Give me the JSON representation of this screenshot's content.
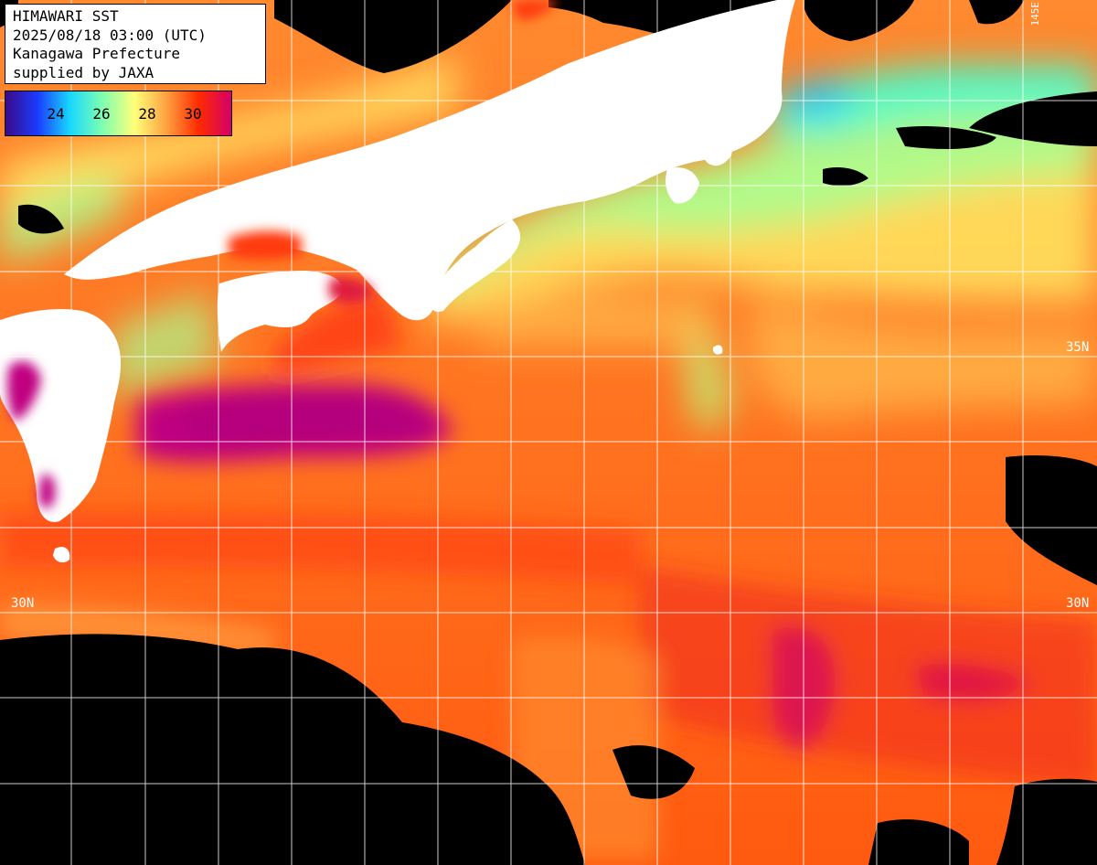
{
  "info": {
    "line1": "HIMAWARI SST",
    "line2": "2025/08/18 03:00 (UTC)",
    "line3": "Kanagawa Prefecture",
    "line4": "supplied by JAXA"
  },
  "legend": {
    "ticks": [
      "24",
      "26",
      "28",
      "30"
    ],
    "colors": [
      "#3a0a8a",
      "#1a3cff",
      "#18d8ff",
      "#7dffb0",
      "#ffff7a",
      "#ffa040",
      "#ff2a00",
      "#d4006a"
    ]
  },
  "map_labels": {
    "lat_35": "35N",
    "lat_30": "30N",
    "lon_top": "145E"
  },
  "colors": {
    "land": "#ffffff",
    "no_data": "#000000",
    "sea_warm": "#ff6a10",
    "sea_hot": "#c0008a",
    "sea_mid": "#ffb040",
    "sea_cool": "#aaff88",
    "sea_cold": "#1ec8ff",
    "grid": "#ffffff"
  }
}
